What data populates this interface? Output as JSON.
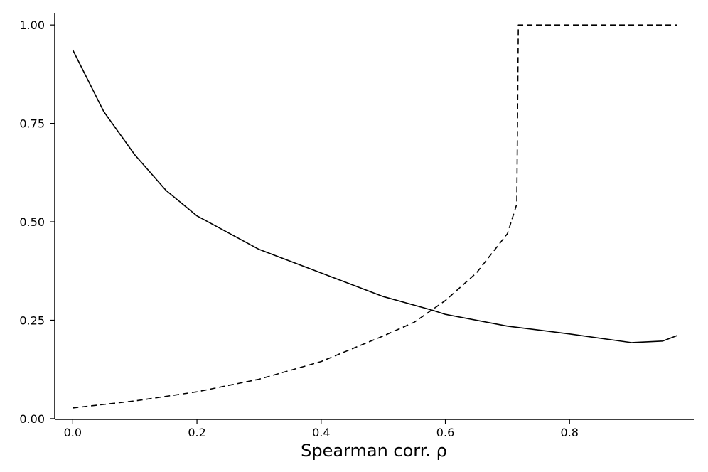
{
  "chart_data": {
    "type": "line",
    "x_label": "Spearman corr. ρ",
    "xlim": [
      -0.029,
      1.0
    ],
    "ylim": [
      -0.002,
      1.031
    ],
    "xticks": [
      {
        "value": 0,
        "label": "0.0"
      },
      {
        "value": 0.2,
        "label": "0.2"
      },
      {
        "value": 0.4,
        "label": "0.4"
      },
      {
        "value": 0.6,
        "label": "0.6"
      },
      {
        "value": 0.8,
        "label": "0.8"
      }
    ],
    "yticks": [
      {
        "value": 0,
        "label": "0.00"
      },
      {
        "value": 0.25,
        "label": "0.25"
      },
      {
        "value": 0.5,
        "label": "0.50"
      },
      {
        "value": 0.75,
        "label": "0.75"
      },
      {
        "value": 1,
        "label": "1.00"
      }
    ],
    "grid": false,
    "series": [
      {
        "color": "#000000",
        "dash": "solid",
        "x": [
          0,
          0.05,
          0.1,
          0.15,
          0.2,
          0.3,
          0.4,
          0.5,
          0.58,
          0.6,
          0.7,
          0.8,
          0.9,
          0.95,
          0.973
        ],
        "values": [
          0.937,
          0.78,
          0.67,
          0.58,
          0.515,
          0.43,
          0.37,
          0.31,
          0.275,
          0.265,
          0.235,
          0.215,
          0.193,
          0.197,
          0.211
        ]
      },
      {
        "color": "#000000",
        "dash": "dashed",
        "x": [
          0,
          0.1,
          0.2,
          0.3,
          0.4,
          0.5,
          0.55,
          0.6,
          0.65,
          0.7,
          0.715,
          0.7175,
          0.973
        ],
        "values": [
          0.027,
          0.045,
          0.068,
          0.1,
          0.145,
          0.21,
          0.245,
          0.3,
          0.37,
          0.47,
          0.545,
          1.0,
          1.0
        ]
      }
    ]
  }
}
